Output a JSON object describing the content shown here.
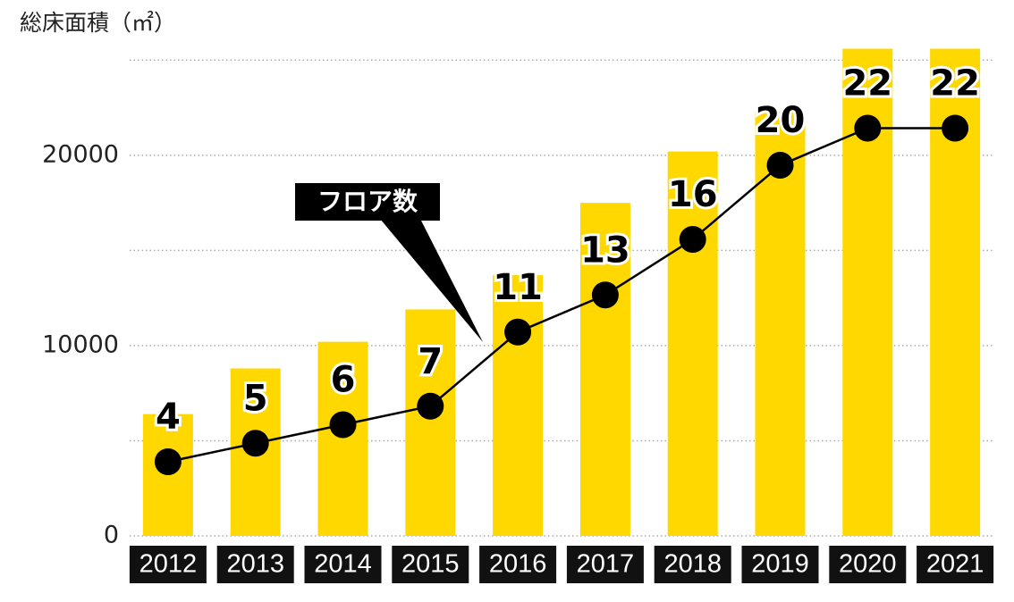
{
  "chart_data": {
    "type": "bar",
    "title": "総床面積（㎡）",
    "categories": [
      "2012",
      "2013",
      "2014",
      "2015",
      "2016",
      "2017",
      "2018",
      "2019",
      "2020",
      "2021"
    ],
    "values": [
      6400,
      8800,
      10200,
      11900,
      13700,
      17500,
      20200,
      22300,
      25600,
      25600
    ],
    "color": "#ffd800",
    "ylim": [
      0,
      26000
    ],
    "yticks": [
      0,
      10000,
      20000
    ],
    "minor_yticks": [
      5000,
      15000,
      25000
    ],
    "grid": true,
    "line": {
      "type": "line",
      "name": "フロア数",
      "color": "#000000",
      "axis": "y2",
      "values": [
        4,
        5,
        6,
        7,
        11,
        13,
        16,
        20,
        22,
        22
      ]
    },
    "y2lim": [
      0,
      26.7
    ]
  }
}
